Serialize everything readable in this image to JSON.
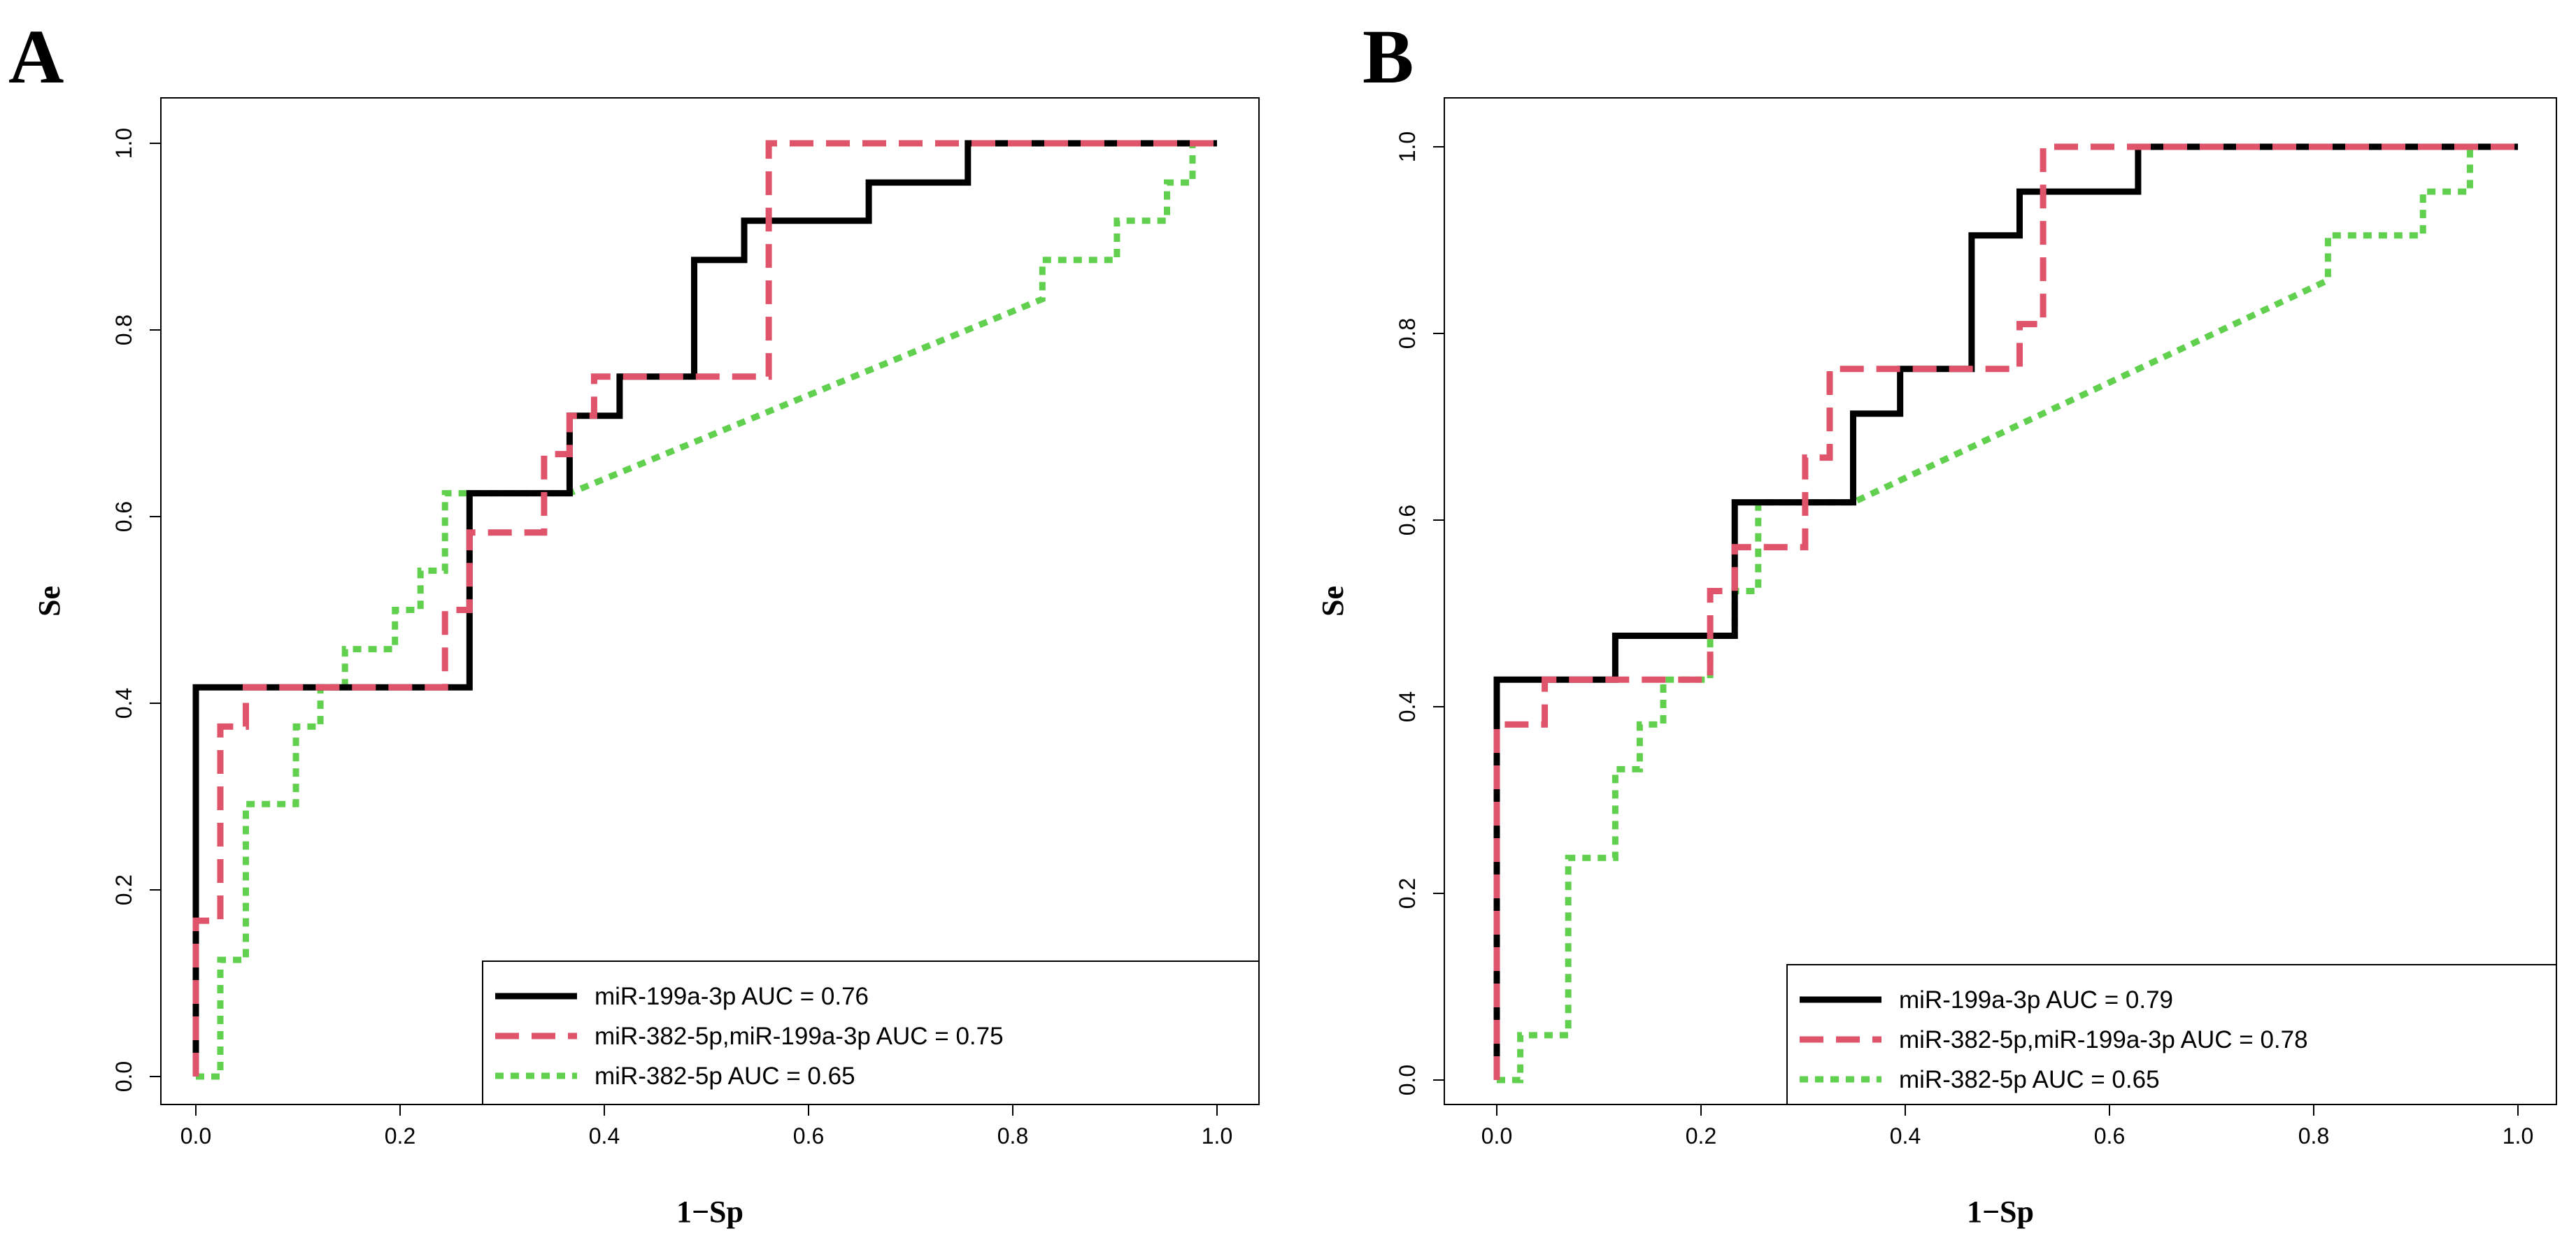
{
  "chart_data": [
    {
      "type": "line",
      "panel_label": "A",
      "xlabel": "1−Sp",
      "ylabel": "Se",
      "xlim": [
        0,
        1
      ],
      "ylim": [
        0,
        1
      ],
      "x_ticks": [
        "0.0",
        "0.2",
        "0.4",
        "0.6",
        "0.8",
        "1.0"
      ],
      "y_ticks": [
        "0.0",
        "0.2",
        "0.4",
        "0.6",
        "0.8",
        "1.0"
      ],
      "legend_position": "bottom-right",
      "series": [
        {
          "name": "miR-199a-3p AUC =  0.76",
          "color": "#000000",
          "style": "solid",
          "points": [
            [
              0,
              0
            ],
            [
              0,
              0.417
            ],
            [
              0.268,
              0.417
            ],
            [
              0.268,
              0.458
            ],
            [
              0.268,
              0.625
            ],
            [
              0.366,
              0.625
            ],
            [
              0.366,
              0.708
            ],
            [
              0.415,
              0.708
            ],
            [
              0.415,
              0.75
            ],
            [
              0.488,
              0.75
            ],
            [
              0.488,
              0.875
            ],
            [
              0.537,
              0.875
            ],
            [
              0.537,
              0.917
            ],
            [
              0.659,
              0.917
            ],
            [
              0.659,
              0.958
            ],
            [
              0.756,
              0.958
            ],
            [
              0.756,
              1.0
            ],
            [
              1.0,
              1.0
            ]
          ]
        },
        {
          "name": "miR-382-5p,miR-199a-3p AUC =  0.75",
          "color": "#DF536B",
          "style": "dashed",
          "points": [
            [
              0,
              0
            ],
            [
              0,
              0.167
            ],
            [
              0.024,
              0.167
            ],
            [
              0.024,
              0.375
            ],
            [
              0.049,
              0.375
            ],
            [
              0.049,
              0.417
            ],
            [
              0.244,
              0.417
            ],
            [
              0.244,
              0.5
            ],
            [
              0.268,
              0.5
            ],
            [
              0.268,
              0.583
            ],
            [
              0.341,
              0.583
            ],
            [
              0.341,
              0.667
            ],
            [
              0.366,
              0.667
            ],
            [
              0.366,
              0.708
            ],
            [
              0.39,
              0.708
            ],
            [
              0.39,
              0.75
            ],
            [
              0.561,
              0.75
            ],
            [
              0.561,
              1.0
            ],
            [
              1.0,
              1.0
            ]
          ]
        },
        {
          "name": "miR-382-5p AUC =  0.65",
          "color": "#61D04F",
          "style": "dotted",
          "points": [
            [
              0,
              0
            ],
            [
              0.024,
              0
            ],
            [
              0.024,
              0.125
            ],
            [
              0.049,
              0.125
            ],
            [
              0.049,
              0.292
            ],
            [
              0.098,
              0.292
            ],
            [
              0.098,
              0.375
            ],
            [
              0.122,
              0.375
            ],
            [
              0.122,
              0.417
            ],
            [
              0.146,
              0.417
            ],
            [
              0.146,
              0.458
            ],
            [
              0.195,
              0.458
            ],
            [
              0.195,
              0.5
            ],
            [
              0.22,
              0.5
            ],
            [
              0.22,
              0.542
            ],
            [
              0.244,
              0.542
            ],
            [
              0.244,
              0.625
            ],
            [
              0.366,
              0.625
            ],
            [
              0.829,
              0.833
            ],
            [
              0.829,
              0.875
            ],
            [
              0.902,
              0.875
            ],
            [
              0.902,
              0.917
            ],
            [
              0.951,
              0.917
            ],
            [
              0.951,
              0.958
            ],
            [
              0.976,
              0.958
            ],
            [
              0.976,
              1.0
            ],
            [
              1.0,
              1.0
            ]
          ]
        }
      ]
    },
    {
      "type": "line",
      "panel_label": "B",
      "xlabel": "1−Sp",
      "ylabel": "Se",
      "xlim": [
        0,
        1
      ],
      "ylim": [
        0,
        1
      ],
      "x_ticks": [
        "0.0",
        "0.2",
        "0.4",
        "0.6",
        "0.8",
        "1.0"
      ],
      "y_ticks": [
        "0.0",
        "0.2",
        "0.4",
        "0.6",
        "0.8",
        "1.0"
      ],
      "legend_position": "bottom-right",
      "series": [
        {
          "name": "miR-199a-3p AUC =  0.79",
          "color": "#000000",
          "style": "solid",
          "points": [
            [
              0,
              0
            ],
            [
              0,
              0.429
            ],
            [
              0.116,
              0.429
            ],
            [
              0.116,
              0.476
            ],
            [
              0.233,
              0.476
            ],
            [
              0.233,
              0.619
            ],
            [
              0.349,
              0.619
            ],
            [
              0.349,
              0.714
            ],
            [
              0.395,
              0.714
            ],
            [
              0.395,
              0.762
            ],
            [
              0.465,
              0.762
            ],
            [
              0.465,
              0.905
            ],
            [
              0.512,
              0.905
            ],
            [
              0.512,
              0.952
            ],
            [
              0.628,
              0.952
            ],
            [
              0.628,
              1.0
            ],
            [
              1.0,
              1.0
            ]
          ]
        },
        {
          "name": "miR-382-5p,miR-199a-3p AUC =  0.78",
          "color": "#DF536B",
          "style": "dashed",
          "points": [
            [
              0,
              0
            ],
            [
              0,
              0.381
            ],
            [
              0.047,
              0.381
            ],
            [
              0.047,
              0.429
            ],
            [
              0.209,
              0.429
            ],
            [
              0.209,
              0.524
            ],
            [
              0.233,
              0.524
            ],
            [
              0.233,
              0.571
            ],
            [
              0.302,
              0.571
            ],
            [
              0.302,
              0.667
            ],
            [
              0.326,
              0.667
            ],
            [
              0.326,
              0.762
            ],
            [
              0.512,
              0.762
            ],
            [
              0.512,
              0.81
            ],
            [
              0.535,
              0.81
            ],
            [
              0.535,
              1.0
            ],
            [
              1.0,
              1.0
            ]
          ]
        },
        {
          "name": "miR-382-5p AUC =  0.65",
          "color": "#61D04F",
          "style": "dotted",
          "points": [
            [
              0,
              0
            ],
            [
              0.023,
              0
            ],
            [
              0.023,
              0.048
            ],
            [
              0.07,
              0.048
            ],
            [
              0.07,
              0.238
            ],
            [
              0.116,
              0.238
            ],
            [
              0.116,
              0.333
            ],
            [
              0.14,
              0.333
            ],
            [
              0.14,
              0.381
            ],
            [
              0.163,
              0.381
            ],
            [
              0.163,
              0.429
            ],
            [
              0.209,
              0.429
            ],
            [
              0.209,
              0.476
            ],
            [
              0.233,
              0.476
            ],
            [
              0.233,
              0.524
            ],
            [
              0.256,
              0.524
            ],
            [
              0.256,
              0.619
            ],
            [
              0.349,
              0.619
            ],
            [
              0.814,
              0.857
            ],
            [
              0.814,
              0.905
            ],
            [
              0.907,
              0.905
            ],
            [
              0.907,
              0.952
            ],
            [
              0.953,
              0.952
            ],
            [
              0.953,
              1.0
            ],
            [
              1.0,
              1.0
            ]
          ]
        }
      ]
    }
  ]
}
